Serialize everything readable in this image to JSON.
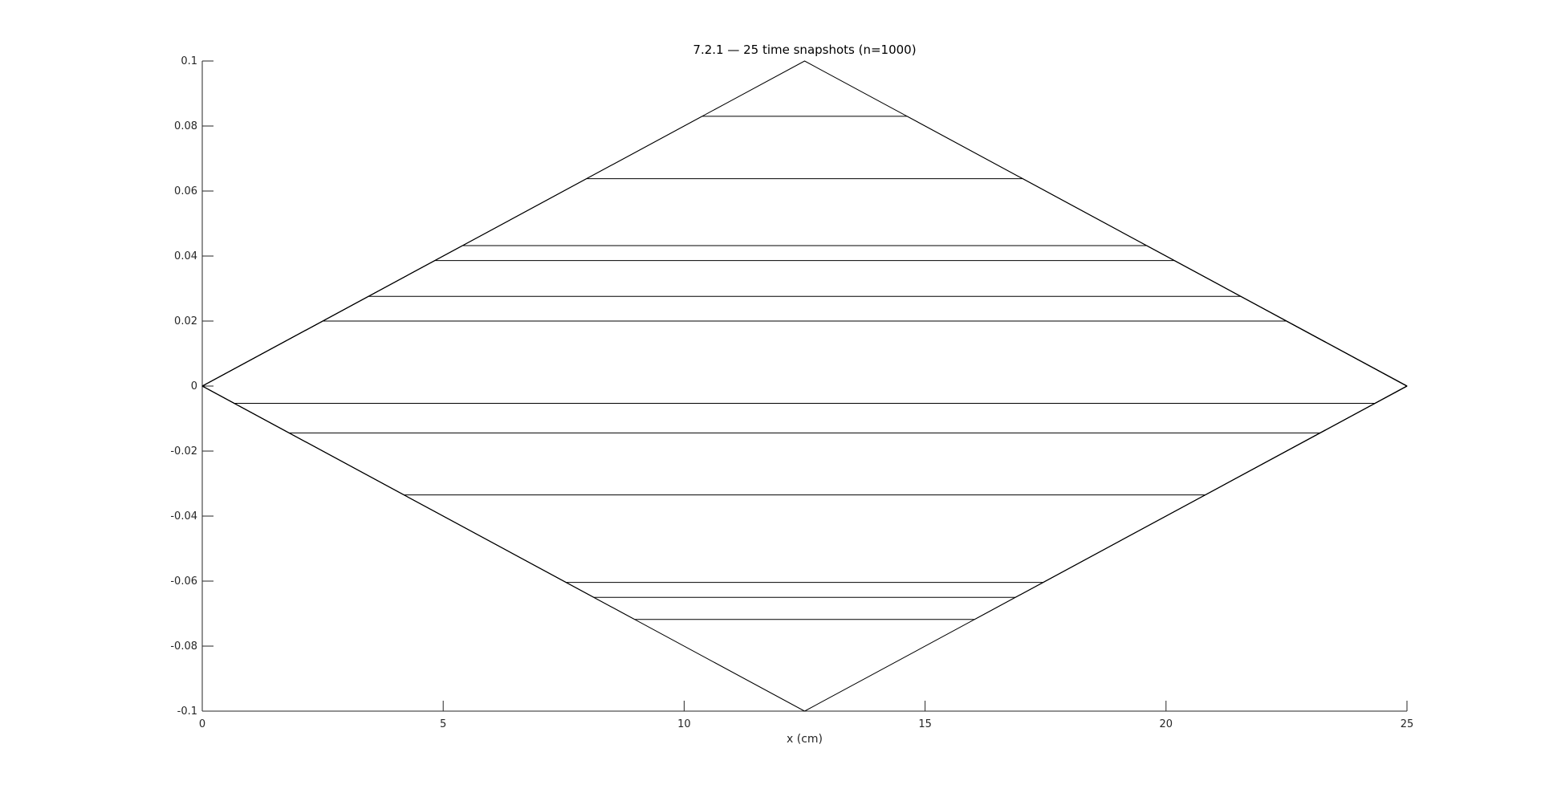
{
  "chart_data": {
    "type": "line",
    "title": "7.2.1 — 25 time snapshots (n=1000)",
    "xlabel": "x (cm)",
    "ylabel": "",
    "xlim": [
      0,
      25
    ],
    "ylim": [
      -0.1,
      0.1
    ],
    "xticks": [
      0,
      5,
      10,
      15,
      20,
      25
    ],
    "xtick_labels": [
      "0",
      "5",
      "10",
      "15",
      "20",
      "25"
    ],
    "yticks": [
      0.1,
      0.08,
      0.06,
      0.04,
      0.02,
      0,
      -0.02,
      -0.04,
      -0.06,
      -0.08,
      -0.1
    ],
    "ytick_labels": [
      "0.1",
      "0.08",
      "0.06",
      "0.04",
      "0.02",
      "0",
      "-0.02",
      "-0.04",
      "-0.06",
      "-0.08",
      "-0.1"
    ],
    "grid": false,
    "line_color": "#000000",
    "description": "Trapezoidal string profiles: each snapshot rises linearly from (0,0) with slope |u_max|/12.5, plateaus at a constant amplitude, then descends linearly to (25,0). The envelope forms a diamond.",
    "series_amplitudes": [
      0.1,
      0.083,
      0.0638,
      0.0432,
      0.0386,
      0.0276,
      0.02,
      -0.0053,
      -0.0144,
      -0.0335,
      -0.0604,
      -0.065,
      -0.0718,
      -0.1
    ],
    "x_peak": 12.5,
    "x_end": 25
  }
}
